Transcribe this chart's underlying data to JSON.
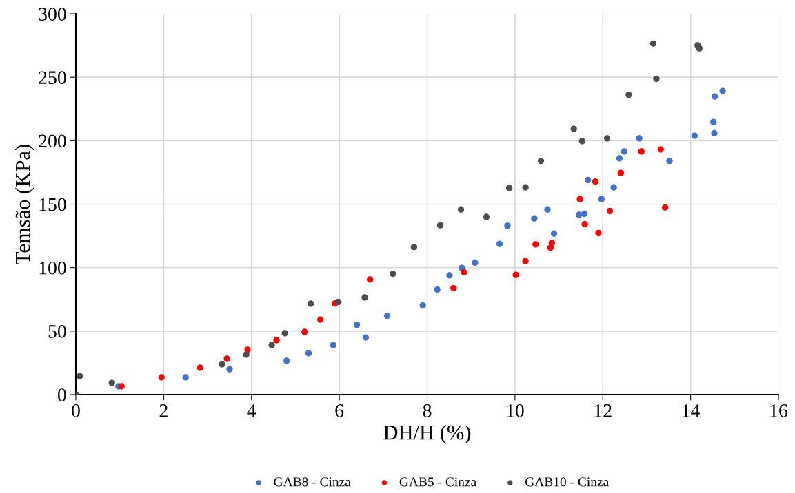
{
  "chart_data": {
    "type": "scatter",
    "xlabel": "DH/H (%)",
    "ylabel": "Temsão (KPa)",
    "xlim": [
      0,
      16
    ],
    "ylim": [
      0,
      300
    ],
    "xticks": [
      0,
      2,
      4,
      6,
      8,
      10,
      12,
      14,
      16
    ],
    "yticks": [
      0,
      50,
      100,
      150,
      200,
      250,
      300
    ],
    "grid": true,
    "legend": "bottom",
    "marker": "circle",
    "series": [
      {
        "name": "GAB8 - Cinza",
        "color": "#4472c4",
        "x": [
          0.97,
          2.5,
          3.5,
          4.8,
          5.3,
          5.86,
          6.4,
          6.6,
          7.09,
          7.9,
          8.23,
          8.51,
          8.79,
          9.09,
          9.65,
          9.83,
          10.44,
          10.74,
          10.89,
          11.46,
          11.58,
          11.66,
          11.97,
          12.25,
          12.38,
          12.49,
          12.83,
          13.52,
          14.09,
          14.54,
          14.52,
          14.55,
          14.73
        ],
        "values": [
          6.5,
          13.6,
          20,
          26.6,
          32.6,
          39,
          55,
          45,
          62,
          70.2,
          82.7,
          93.9,
          99.7,
          103.9,
          118.7,
          133,
          138.8,
          145.8,
          126.8,
          141.6,
          142.4,
          169,
          154,
          163.2,
          186.1,
          191.5,
          201.9,
          184.1,
          203.9,
          205.9,
          214.7,
          234.8,
          239.2
        ]
      },
      {
        "name": "GAB5 - Cinza",
        "color": "#ff0000",
        "x": [
          1.04,
          1.95,
          2.83,
          3.44,
          3.91,
          4.57,
          5.21,
          5.57,
          5.9,
          6.7,
          8.6,
          8.84,
          10.02,
          10.24,
          10.47,
          10.81,
          10.84,
          11.48,
          11.59,
          11.83,
          11.9,
          12.16,
          12.41,
          12.88,
          13.32,
          13.42
        ],
        "values": [
          6.5,
          13.6,
          21.2,
          28.2,
          35.3,
          42.9,
          49.4,
          59.1,
          71.8,
          90.6,
          83.9,
          96.3,
          94.3,
          105.1,
          118.3,
          115.7,
          119.5,
          154,
          134.2,
          167.8,
          127.2,
          144.6,
          174.6,
          191.5,
          193.1,
          147.4
        ]
      },
      {
        "name": "GAB10 - Cinza",
        "color": "#4d4d4d",
        "x": [
          0,
          0.09,
          0.82,
          3.33,
          3.88,
          4.46,
          4.76,
          5.35,
          5.98,
          6.58,
          7.22,
          7.7,
          8.3,
          8.77,
          9.35,
          9.87,
          10.24,
          10.59,
          11.34,
          11.53,
          12.1,
          12.59,
          13.15,
          13.22,
          14.16,
          14.2
        ],
        "values": [
          0,
          14.6,
          9.2,
          23.9,
          31.5,
          39,
          48.3,
          71.6,
          73,
          76.5,
          95.1,
          116.3,
          133.4,
          145.8,
          140,
          162.8,
          163.2,
          184.1,
          209.3,
          199.7,
          201.9,
          236.2,
          276.5,
          248.8,
          275.1,
          272.8
        ]
      }
    ]
  }
}
